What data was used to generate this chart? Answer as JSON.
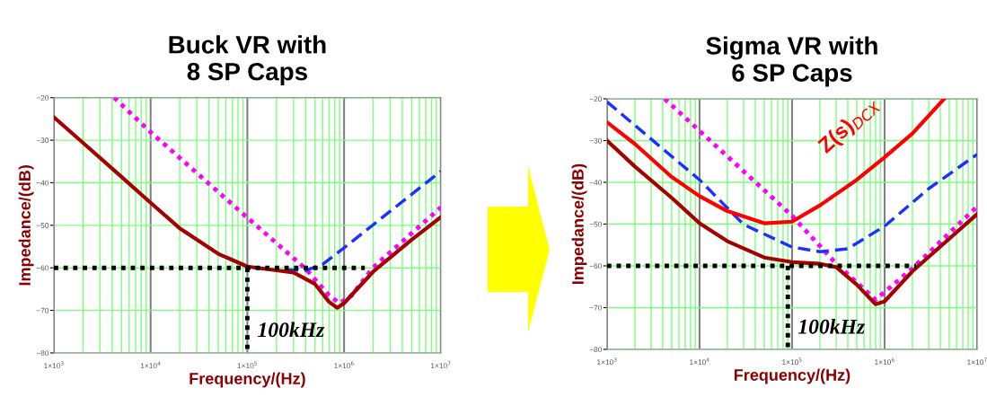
{
  "chart_data": [
    {
      "type": "line",
      "title": "Buck VR with\n8 SP Caps",
      "xlabel": "Frequency/(Hz)",
      "ylabel": "Impedance/(dB)",
      "log": "x",
      "grid": true,
      "legend": false,
      "xlim": [
        1000,
        10000000
      ],
      "ylim": [
        -80,
        -20
      ],
      "xticks": [
        {
          "value": 1000,
          "label": "1×10$^{3}$"
        },
        {
          "value": 10000,
          "label": "1×10$^{4}$"
        },
        {
          "value": 100000,
          "label": "1×10$^{5}$"
        },
        {
          "value": 1000000,
          "label": "1×10$^{6}$"
        },
        {
          "value": 10000000,
          "label": "1×10$^{7}$"
        }
      ],
      "yticks": [
        -80,
        -70,
        -60,
        -50,
        -40,
        -30,
        -20
      ],
      "series": [
        {
          "color": "#ff00ff",
          "line_style": "dotted",
          "x": [
            4200,
            10000,
            100000,
            400000,
            700000,
            900000,
            1200000,
            2000000,
            10000000
          ],
          "values": [
            -20,
            -28.1,
            -48.2,
            -60.2,
            -66.5,
            -68.3,
            -66.5,
            -59.9,
            -45.8
          ]
        },
        {
          "color": "#1f2fff",
          "line_style": "dashed",
          "x": [
            250000,
            400000,
            600000,
            1000000,
            3000000,
            10000000
          ],
          "values": [
            -60.5,
            -60.6,
            -59.2,
            -55.3,
            -46.7,
            -37.3
          ]
        },
        {
          "color": "#a50000",
          "line_style": "solid",
          "x": [
            1000,
            2000,
            5000,
            10000,
            20000,
            50000,
            100000,
            200000,
            300000,
            500000,
            700000,
            850000,
            1000000,
            2000000,
            5000000,
            10000000
          ],
          "values": [
            -24.6,
            -30.6,
            -38.6,
            -44.7,
            -50.7,
            -56.7,
            -59.7,
            -60.6,
            -61.1,
            -63.8,
            -68,
            -69.4,
            -68.3,
            -60.9,
            -53.4,
            -48.1
          ]
        },
        {
          "color": "#000000",
          "line_style": "dotted",
          "x": [
            1000,
            1640000
          ],
          "values": [
            -60,
            -60
          ]
        },
        {
          "color": "#000000",
          "line_style": "dotted",
          "x": [
            100000,
            100000
          ],
          "values": [
            -60,
            -80
          ]
        }
      ],
      "annotations": [
        {
          "text": "100kHz",
          "x": 100000,
          "y": -75
        }
      ]
    },
    {
      "type": "line",
      "title": "Sigma VR with\n6 SP Caps",
      "xlabel": "Frequency/(Hz)",
      "ylabel": "Impedance/(dB)",
      "log": "x",
      "grid": true,
      "legend": false,
      "xlim": [
        1000,
        10000000
      ],
      "ylim": [
        -80,
        -20
      ],
      "xticks": [
        {
          "value": 1000,
          "label": "1×10$^{3}$"
        },
        {
          "value": 10000,
          "label": "1×10$^{4}$"
        },
        {
          "value": 100000,
          "label": "1×10$^{5}$"
        },
        {
          "value": 1000000,
          "label": "1×10$^{6}$"
        },
        {
          "value": 10000000,
          "label": "1×10$^{7}$"
        }
      ],
      "yticks": [
        -80,
        -70,
        -60,
        -50,
        -40,
        -30,
        -20
      ],
      "series": [
        {
          "color": "#ff00ff",
          "line_style": "dotted",
          "x": [
            4200,
            100000,
            300000,
            800000,
            2000000,
            10000000
          ],
          "values": [
            -20,
            -48,
            -59.5,
            -68.1,
            -60.6,
            -45.8
          ]
        },
        {
          "color": "#1f2fff",
          "line_style": "dashed",
          "x": [
            1000,
            10000,
            30000,
            100000,
            200000,
            400000,
            1000000,
            3000000,
            10000000
          ],
          "values": [
            -20.7,
            -39.4,
            -50.1,
            -55.5,
            -56.6,
            -55.9,
            -50.5,
            -41.5,
            -33.3
          ]
        },
        {
          "name": "Z(s)$_{DCX}$",
          "color": "#ff0000",
          "line_style": "solid",
          "x": [
            1000,
            2000,
            5000,
            10000,
            20000,
            50000,
            100000,
            200000,
            500000,
            1000000,
            2000000,
            4400000
          ],
          "values": [
            -25.6,
            -30.8,
            -38.7,
            -43.3,
            -46.9,
            -49.8,
            -49.4,
            -45.5,
            -39.4,
            -34,
            -28.3,
            -20
          ]
        },
        {
          "color": "#a50000",
          "line_style": "solid",
          "x": [
            1000,
            2000,
            5000,
            10000,
            20000,
            50000,
            100000,
            200000,
            300000,
            500000,
            800000,
            1000000,
            2000000,
            10000000
          ],
          "values": [
            -30,
            -36.2,
            -43.7,
            -49.8,
            -54.1,
            -58,
            -59.1,
            -59.5,
            -60.3,
            -64.5,
            -69.2,
            -68.5,
            -61.3,
            -47.6
          ]
        },
        {
          "color": "#000000",
          "line_style": "dotted",
          "x": [
            1000,
            2200000
          ],
          "values": [
            -60,
            -60
          ]
        },
        {
          "color": "#000000",
          "line_style": "dotted",
          "x": [
            90000,
            90000
          ],
          "values": [
            -60,
            -80
          ]
        }
      ],
      "annotations": [
        {
          "text": "100kHz",
          "x": 90000,
          "y": -75
        }
      ]
    }
  ]
}
